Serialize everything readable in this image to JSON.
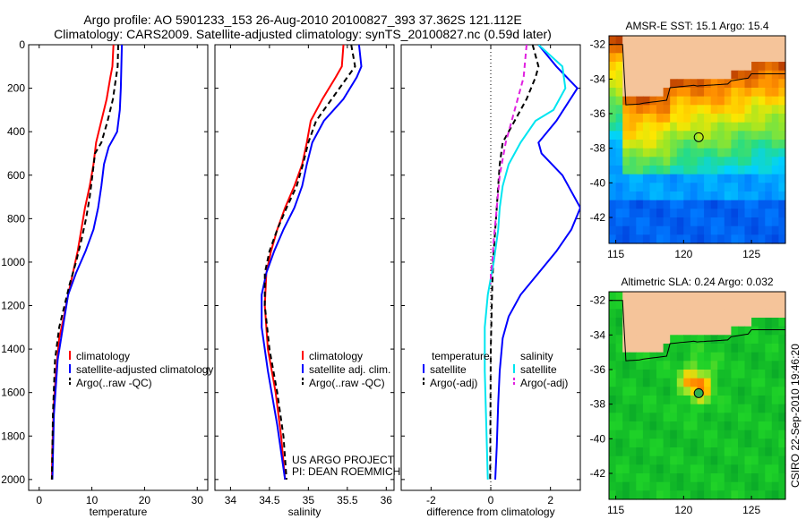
{
  "header": {
    "line1": "Argo profile: AO 5901233_153 26-Aug-2010 20100827_393 37.362S 121.112E",
    "line2": "Climatology: CARS2009. Satellite-adjusted climatology: synTS_20100827.nc (0.59d later)"
  },
  "side_label": "CSIRO 22-Sep-2010 19:46:20",
  "colors": {
    "climatology": "#ff0000",
    "satellite": "#0000ff",
    "argo": "#000000",
    "salinity_satellite": "#00e5f0",
    "salinity_argo": "#e020e0",
    "land": "#f5c49a"
  },
  "chart_data": [
    {
      "id": "temperature",
      "type": "line",
      "xlabel": "temperature",
      "ylabel": "",
      "xlim": [
        -2,
        32
      ],
      "ylim": [
        2050,
        0
      ],
      "xticks": [
        0,
        10,
        20,
        30
      ],
      "xtick_labels": [
        "0",
        "10",
        "20",
        "30"
      ],
      "yticks": [
        0,
        200,
        400,
        600,
        800,
        1000,
        1200,
        1400,
        1600,
        1800,
        2000
      ],
      "ytick_labels": [
        "0",
        "200",
        "400",
        "600",
        "800",
        "1000",
        "1200",
        "1400",
        "1600",
        "1800",
        "2000"
      ],
      "series": [
        {
          "name": "climatology",
          "color": "#ff0000",
          "dash": "",
          "x": [
            14.1,
            13.9,
            13.5,
            12.8,
            11.8,
            10.8,
            10.3,
            9.6,
            8.7,
            8.0,
            7.3,
            6.4,
            5.5,
            4.7,
            3.8,
            3.2,
            2.8,
            2.5,
            2.4
          ],
          "y": [
            0,
            100,
            150,
            250,
            350,
            450,
            550,
            650,
            750,
            850,
            950,
            1050,
            1150,
            1250,
            1350,
            1500,
            1650,
            1850,
            2000
          ]
        },
        {
          "name": "satellite-adjusted climatology",
          "color": "#0000ff",
          "dash": "",
          "x": [
            15.7,
            15.6,
            15.5,
            15.3,
            14.8,
            13.2,
            12.3,
            11.8,
            11.2,
            10.3,
            8.8,
            7.0,
            5.5,
            4.5,
            3.5,
            2.8,
            2.5
          ],
          "y": [
            0,
            100,
            200,
            300,
            400,
            470,
            550,
            650,
            750,
            850,
            950,
            1050,
            1150,
            1300,
            1450,
            1700,
            2000
          ]
        },
        {
          "name": "Argo(..raw -QC)",
          "color": "#000000",
          "dash": "6,4",
          "x": [
            15.0,
            14.9,
            14.6,
            14.0,
            13.0,
            11.8,
            10.6,
            10.1,
            9.6,
            8.9,
            8.0,
            7.0,
            5.8,
            4.8,
            3.8,
            3.0,
            2.6,
            2.4
          ],
          "y": [
            0,
            100,
            150,
            250,
            350,
            450,
            500,
            600,
            700,
            800,
            900,
            1000,
            1100,
            1200,
            1300,
            1450,
            1700,
            2000
          ]
        }
      ],
      "legend": [
        "climatology",
        "satellite-adjusted climatology",
        "Argo(..raw -QC)"
      ],
      "legend_position": "bottom-right"
    },
    {
      "id": "salinity",
      "type": "line",
      "xlabel": "salinity",
      "ylabel": "",
      "xlim": [
        33.8,
        36.1
      ],
      "ylim": [
        2050,
        0
      ],
      "xticks": [
        34,
        34.5,
        35,
        35.5,
        36
      ],
      "xtick_labels": [
        "34",
        "34.5",
        "35",
        "35.5",
        "36"
      ],
      "yticks": [
        0,
        200,
        400,
        600,
        800,
        1000,
        1200,
        1400,
        1600,
        1800,
        2000
      ],
      "series": [
        {
          "name": "climatology",
          "color": "#ff0000",
          "dash": "",
          "x": [
            35.45,
            35.43,
            35.35,
            35.18,
            35.03,
            34.98,
            34.92,
            34.82,
            34.7,
            34.6,
            34.52,
            34.46,
            34.44,
            34.48,
            34.58,
            34.65,
            34.7
          ],
          "y": [
            0,
            100,
            150,
            250,
            350,
            450,
            550,
            650,
            750,
            850,
            950,
            1050,
            1200,
            1400,
            1600,
            1800,
            2000
          ]
        },
        {
          "name": "satellite adj. clim.",
          "color": "#0000ff",
          "dash": "",
          "x": [
            35.65,
            35.68,
            35.62,
            35.45,
            35.2,
            35.05,
            34.98,
            34.92,
            34.82,
            34.68,
            34.56,
            34.46,
            34.4,
            34.4,
            34.48,
            34.6,
            34.7
          ],
          "y": [
            0,
            100,
            150,
            250,
            350,
            450,
            550,
            650,
            750,
            850,
            950,
            1050,
            1150,
            1300,
            1500,
            1750,
            2000
          ]
        },
        {
          "name": "Argo(..raw -QC)",
          "color": "#000000",
          "dash": "6,4",
          "x": [
            35.55,
            35.6,
            35.5,
            35.3,
            35.1,
            35.0,
            34.93,
            34.85,
            34.72,
            34.6,
            34.5,
            34.44,
            34.44,
            34.5,
            34.6,
            34.68,
            34.72
          ],
          "y": [
            0,
            100,
            150,
            250,
            350,
            450,
            550,
            650,
            750,
            850,
            950,
            1050,
            1200,
            1400,
            1600,
            1800,
            2000
          ]
        }
      ],
      "legend": [
        "climatology",
        "satellite adj. clim.",
        "Argo(..raw -QC)"
      ],
      "legend_position": "bottom-right",
      "annotation": [
        "US ARGO PROJECT",
        "PI: DEAN ROEMMICH"
      ]
    },
    {
      "id": "difference",
      "type": "line",
      "xlabel": "difference from climatology",
      "ylabel": "",
      "xlim": [
        -3,
        3
      ],
      "ylim": [
        2050,
        0
      ],
      "xticks": [
        -2,
        0,
        2
      ],
      "xtick_labels": [
        "-2",
        "0",
        "2"
      ],
      "yticks": [
        0,
        200,
        400,
        600,
        800,
        1000,
        1200,
        1400,
        1600,
        1800,
        2000
      ],
      "series": [
        {
          "name": "temperature satellite",
          "color": "#0000ff",
          "dash": "",
          "x": [
            1.6,
            2.2,
            2.9,
            2.2,
            1.6,
            1.7,
            2.4,
            3.0,
            2.7,
            2.2,
            1.6,
            1.0,
            0.6,
            0.4,
            0.3,
            0.25,
            0.2,
            0.15
          ],
          "y": [
            0,
            100,
            200,
            350,
            450,
            500,
            600,
            750,
            850,
            950,
            1050,
            1150,
            1250,
            1350,
            1500,
            1650,
            1850,
            2000
          ]
        },
        {
          "name": "temperature Argo(-adj)",
          "color": "#000000",
          "dash": "6,4",
          "x": [
            1.4,
            1.6,
            1.5,
            1.2,
            0.8,
            0.4,
            0.3,
            0.25,
            0.2,
            0.15,
            0.1,
            0.05,
            0.0,
            -0.02
          ],
          "y": [
            0,
            100,
            150,
            250,
            350,
            450,
            550,
            650,
            750,
            850,
            950,
            1100,
            1400,
            2000
          ]
        },
        {
          "name": "salinity satellite",
          "color": "#00e5f0",
          "dash": "",
          "x": [
            1.6,
            2.4,
            2.5,
            2.1,
            1.5,
            1.0,
            0.6,
            0.4,
            0.3,
            0.25,
            0.1,
            -0.1,
            -0.2,
            -0.2,
            -0.15,
            -0.1
          ],
          "y": [
            0,
            100,
            200,
            300,
            350,
            450,
            550,
            650,
            750,
            850,
            1000,
            1150,
            1300,
            1500,
            1750,
            2000
          ]
        },
        {
          "name": "salinity Argo(-adj)",
          "color": "#e020e0",
          "dash": "6,4",
          "x": [
            1.2,
            1.1,
            0.8,
            0.5,
            0.3,
            0.2,
            0.1,
            0.05,
            0.0,
            0.0
          ],
          "y": [
            0,
            150,
            300,
            450,
            600,
            750,
            900,
            1000,
            1050,
            1100
          ]
        }
      ],
      "legend_groups": [
        {
          "title": "temperature",
          "entries": [
            "satellite",
            "Argo(-adj)"
          ]
        },
        {
          "title": "salinity",
          "entries": [
            "satellite",
            "Argo(-adj)"
          ]
        }
      ],
      "legend_position": "bottom"
    },
    {
      "id": "sst_map",
      "type": "heatmap",
      "title": "AMSR-E SST: 15.1  Argo: 15.4",
      "xlim": [
        114.5,
        127.5
      ],
      "ylim": [
        -43.5,
        -31.5
      ],
      "xticks": [
        115,
        120,
        125
      ],
      "xtick_labels": [
        "115",
        "120",
        "125"
      ],
      "yticks": [
        -32,
        -34,
        -36,
        -38,
        -40,
        -42
      ],
      "ytick_labels": [
        "-32",
        "-34",
        "-36",
        "-38",
        "-40",
        "-42"
      ],
      "marker": {
        "lon": 121.112,
        "lat": -37.362
      }
    },
    {
      "id": "sla_map",
      "type": "heatmap",
      "title": "Altimetric SLA: 0.24  Argo: 0.032",
      "xlim": [
        114.5,
        127.5
      ],
      "ylim": [
        -43.5,
        -31.5
      ],
      "xticks": [
        115,
        120,
        125
      ],
      "xtick_labels": [
        "115",
        "120",
        "125"
      ],
      "yticks": [
        -32,
        -34,
        -36,
        -38,
        -40,
        -42
      ],
      "ytick_labels": [
        "-32",
        "-34",
        "-36",
        "-38",
        "-40",
        "-42"
      ],
      "marker": {
        "lon": 121.112,
        "lat": -37.362
      }
    }
  ]
}
